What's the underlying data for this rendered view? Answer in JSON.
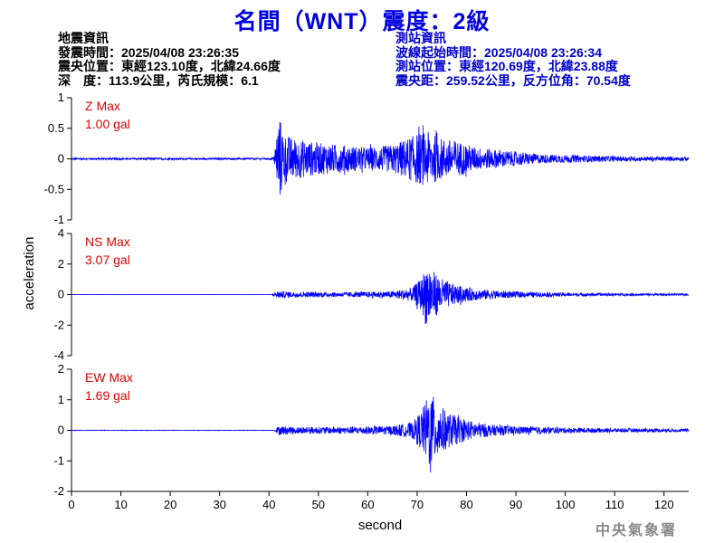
{
  "header": {
    "title": "名間（WNT）震度：2級"
  },
  "earthquake_info": {
    "heading": "地震資訊",
    "origin_time": "發震時間：2025/04/08 23:26:35",
    "epicenter": "震央位置：東經123.10度，北緯24.66度",
    "depth_magnitude": "深　度：113.9公里，芮氏規模：6.1"
  },
  "station_info": {
    "heading": "測站資訊",
    "arrival_time": "波線起始時間：2025/04/08 23:26:34",
    "location": "測站位置：東經120.69度，北緯23.88度",
    "distance": "震央距：259.52公里，反方位角：70.54度"
  },
  "watermark": "中央氣象署",
  "chart_data": {
    "type": "line",
    "xlabel": "second",
    "ylabel": "acceleration",
    "xlim": [
      0,
      125
    ],
    "x_ticks": [
      0,
      10,
      20,
      30,
      40,
      50,
      60,
      70,
      80,
      90,
      100,
      110,
      120
    ],
    "grid": false,
    "line_color": "#0000ff",
    "label_color": "#e00000",
    "panels": [
      {
        "name": "Z",
        "label": "Z Max",
        "max_label": "1.00 gal",
        "ylim": [
          -1,
          1
        ],
        "y_ticks": [
          "1",
          "0.5",
          "0",
          "-0.5",
          "-1"
        ],
        "y_tick_values": [
          1,
          0.5,
          0,
          -0.5,
          -1
        ],
        "max": 1.0,
        "envelope": [
          [
            0,
            0.02
          ],
          [
            40,
            0.02
          ],
          [
            41,
            0.05
          ],
          [
            41.6,
            0.6
          ],
          [
            42,
            1.0
          ],
          [
            43,
            0.55
          ],
          [
            45,
            0.45
          ],
          [
            50,
            0.35
          ],
          [
            55,
            0.3
          ],
          [
            60,
            0.25
          ],
          [
            65,
            0.3
          ],
          [
            68,
            0.45
          ],
          [
            70,
            0.55
          ],
          [
            72,
            0.6
          ],
          [
            75,
            0.45
          ],
          [
            78,
            0.4
          ],
          [
            82,
            0.25
          ],
          [
            88,
            0.18
          ],
          [
            95,
            0.1
          ],
          [
            105,
            0.07
          ],
          [
            115,
            0.05
          ],
          [
            125,
            0.04
          ]
        ]
      },
      {
        "name": "NS",
        "label": "NS Max",
        "max_label": "3.07 gal",
        "ylim": [
          -4,
          4
        ],
        "y_ticks": [
          "4",
          "2",
          "0",
          "-2",
          "-4"
        ],
        "y_tick_values": [
          4,
          2,
          0,
          -2,
          -4
        ],
        "max": 3.07,
        "envelope": [
          [
            0,
            0.01
          ],
          [
            40.5,
            0.01
          ],
          [
            41.5,
            0.3
          ],
          [
            45,
            0.25
          ],
          [
            55,
            0.2
          ],
          [
            65,
            0.3
          ],
          [
            69,
            0.6
          ],
          [
            71,
            1.5
          ],
          [
            72,
            3.07
          ],
          [
            73,
            2.2
          ],
          [
            75,
            1.4
          ],
          [
            78,
            0.8
          ],
          [
            82,
            0.5
          ],
          [
            88,
            0.3
          ],
          [
            95,
            0.2
          ],
          [
            105,
            0.12
          ],
          [
            115,
            0.1
          ],
          [
            125,
            0.08
          ]
        ]
      },
      {
        "name": "EW",
        "label": "EW Max",
        "max_label": "1.69 gal",
        "ylim": [
          -2,
          2
        ],
        "y_ticks": [
          "2",
          "1",
          "0",
          "-1",
          "-2"
        ],
        "y_tick_values": [
          2,
          1,
          0,
          -1,
          -2
        ],
        "max": 1.69,
        "envelope": [
          [
            0,
            0.01
          ],
          [
            41,
            0.01
          ],
          [
            42,
            0.2
          ],
          [
            45,
            0.15
          ],
          [
            55,
            0.15
          ],
          [
            65,
            0.2
          ],
          [
            69,
            0.35
          ],
          [
            71,
            0.9
          ],
          [
            72.5,
            1.69
          ],
          [
            74,
            1.3
          ],
          [
            76,
            0.8
          ],
          [
            80,
            0.45
          ],
          [
            85,
            0.25
          ],
          [
            90,
            0.18
          ],
          [
            100,
            0.12
          ],
          [
            110,
            0.09
          ],
          [
            125,
            0.07
          ]
        ]
      }
    ]
  }
}
